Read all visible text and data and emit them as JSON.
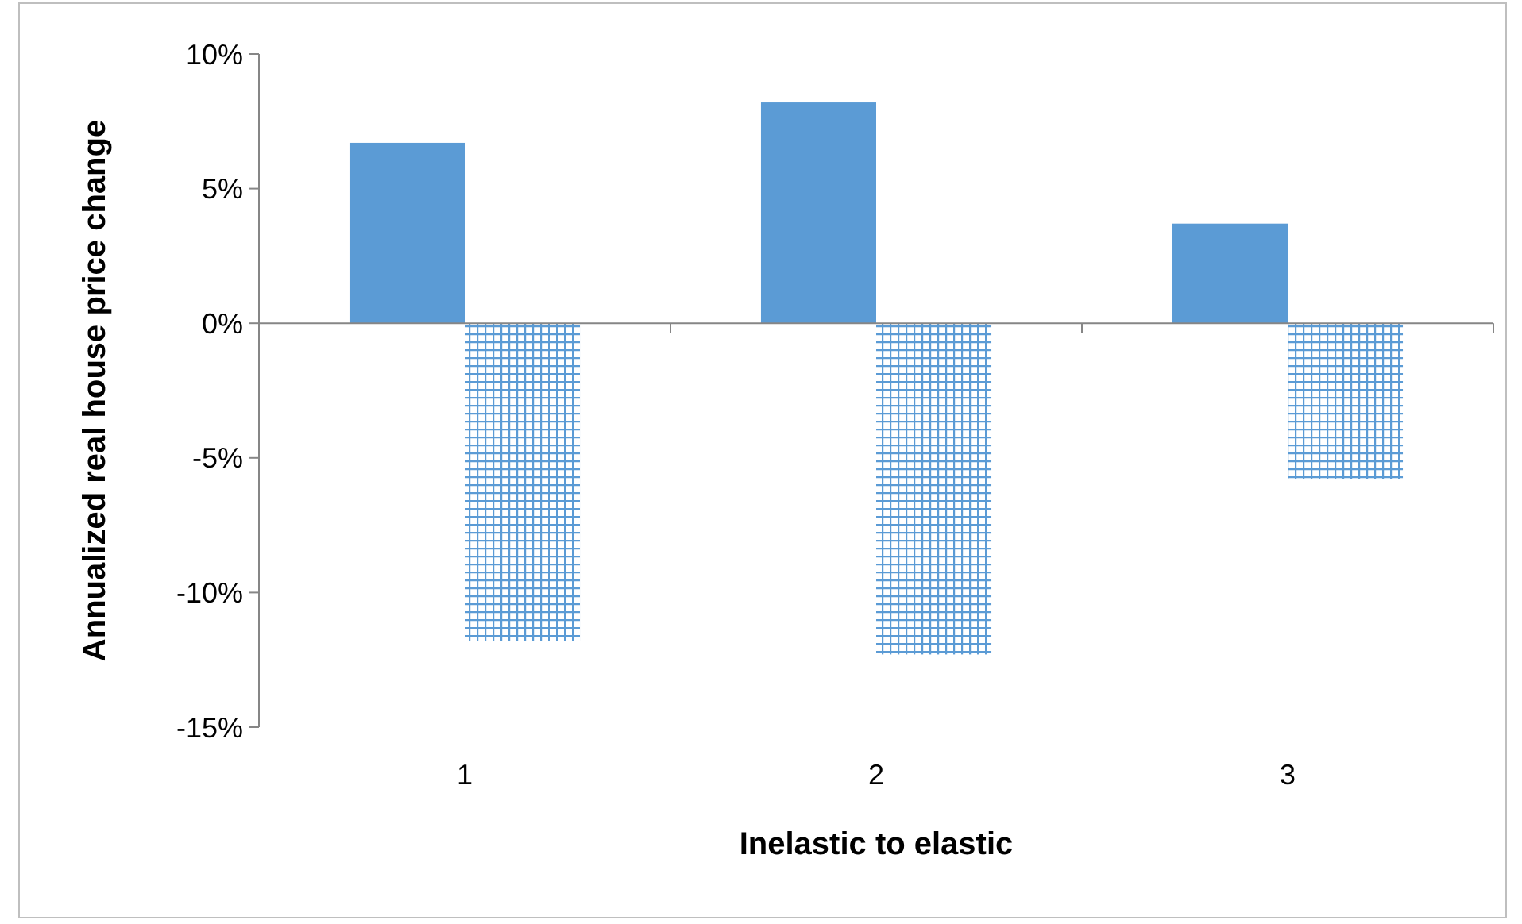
{
  "chart_data": {
    "type": "bar",
    "xlabel": "Inelastic to elastic",
    "ylabel": "Annualized real house price change",
    "categories": [
      "1",
      "2",
      "3"
    ],
    "series": [
      {
        "color": "#5b9bd5",
        "values": [
          6.7,
          8.2,
          3.7
        ]
      },
      {
        "color": "#5b9bd5",
        "values": [
          -11.8,
          -12.3,
          -5.8
        ]
      }
    ],
    "ylim": [
      -15,
      10
    ],
    "yticks": [
      {
        "value": -15,
        "label": "-15%"
      },
      {
        "value": -10,
        "label": "-10%"
      },
      {
        "value": -5,
        "label": "-5%"
      },
      {
        "value": 0,
        "label": "0%"
      },
      {
        "value": 5,
        "label": "5%"
      },
      {
        "value": 10,
        "label": "10%"
      }
    ]
  }
}
